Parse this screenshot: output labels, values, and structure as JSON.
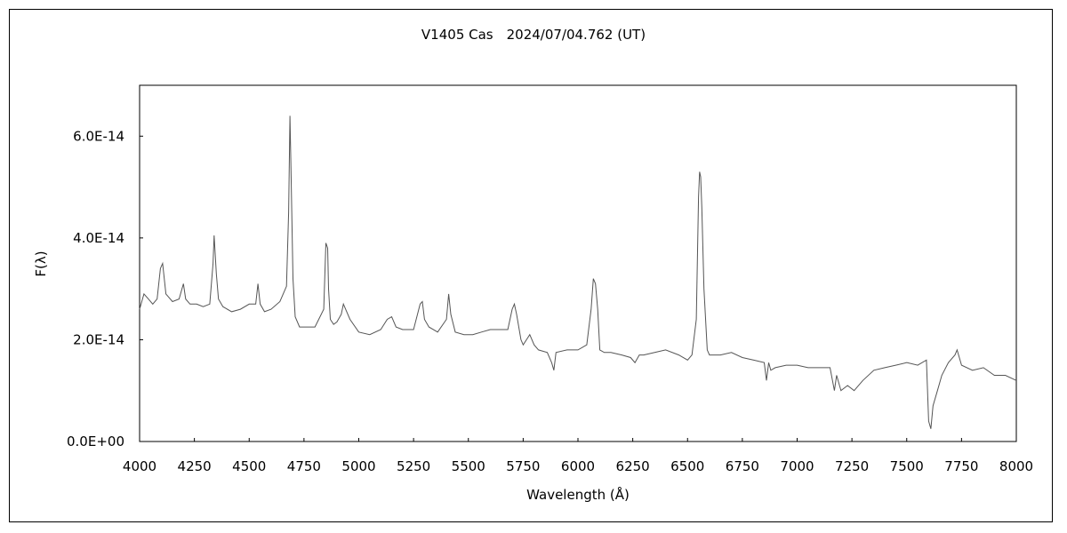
{
  "chart_data": {
    "type": "line",
    "title": "V1405 Cas　2024/07/04.762 (UT)",
    "xlabel": "Wavelength (Å)",
    "ylabel": "F(λ)",
    "xlim": [
      4000,
      8000
    ],
    "ylim": [
      0,
      7e-14
    ],
    "x_ticks": [
      4000,
      4250,
      4500,
      4750,
      5000,
      5250,
      5500,
      5750,
      6000,
      6250,
      6500,
      6750,
      7000,
      7250,
      7500,
      7750,
      8000
    ],
    "x_tick_labels": [
      "4000",
      "4250",
      "4500",
      "4750",
      "5000",
      "5250",
      "5500",
      "5750",
      "6000",
      "6250",
      "6500",
      "6750",
      "7000",
      "7250",
      "7500",
      "7750",
      "8000"
    ],
    "y_ticks": [
      0,
      2e-14,
      4e-14,
      6e-14
    ],
    "y_tick_labels": [
      "0.0E+00",
      "2.0E-14",
      "4.0E-14",
      "6.0E-14"
    ],
    "line_color": "#555555",
    "series": [
      {
        "x": [
          4000,
          4020,
          4040,
          4060,
          4080,
          4095,
          4105,
          4120,
          4150,
          4180,
          4200,
          4210,
          4230,
          4260,
          4290,
          4320,
          4335,
          4340,
          4350,
          4360,
          4380,
          4420,
          4460,
          4500,
          4530,
          4540,
          4550,
          4570,
          4600,
          4640,
          4670,
          4680,
          4686,
          4690,
          4700,
          4710,
          4730,
          4760,
          4800,
          4840,
          4850,
          4858,
          4862,
          4870,
          4885,
          4900,
          4920,
          4930,
          4940,
          4960,
          5000,
          5050,
          5100,
          5130,
          5150,
          5170,
          5200,
          5250,
          5280,
          5290,
          5300,
          5320,
          5360,
          5400,
          5410,
          5420,
          5440,
          5480,
          5520,
          5560,
          5600,
          5640,
          5680,
          5700,
          5710,
          5720,
          5740,
          5750,
          5780,
          5800,
          5820,
          5860,
          5880,
          5890,
          5900,
          5950,
          6000,
          6040,
          6060,
          6070,
          6080,
          6090,
          6100,
          6120,
          6150,
          6200,
          6240,
          6260,
          6280,
          6300,
          6350,
          6400,
          6460,
          6500,
          6520,
          6540,
          6550,
          6555,
          6560,
          6565,
          6575,
          6590,
          6600,
          6650,
          6700,
          6750,
          6800,
          6850,
          6860,
          6870,
          6880,
          6900,
          6950,
          7000,
          7050,
          7100,
          7150,
          7170,
          7180,
          7200,
          7230,
          7260,
          7300,
          7350,
          7400,
          7450,
          7500,
          7550,
          7590,
          7600,
          7610,
          7620,
          7640,
          7660,
          7690,
          7720,
          7730,
          7750,
          7800,
          7850,
          7900,
          7950,
          8000
        ],
        "y": [
          2.6e-14,
          2.9e-14,
          2.8e-14,
          2.7e-14,
          2.8e-14,
          3.4e-14,
          3.5e-14,
          2.9e-14,
          2.75e-14,
          2.8e-14,
          3.1e-14,
          2.8e-14,
          2.7e-14,
          2.7e-14,
          2.65e-14,
          2.7e-14,
          3.5e-14,
          4.05e-14,
          3.3e-14,
          2.8e-14,
          2.65e-14,
          2.55e-14,
          2.6e-14,
          2.7e-14,
          2.7e-14,
          3.1e-14,
          2.7e-14,
          2.55e-14,
          2.6e-14,
          2.75e-14,
          3.05e-14,
          4.5e-14,
          6.4e-14,
          5.5e-14,
          3.2e-14,
          2.45e-14,
          2.25e-14,
          2.25e-14,
          2.25e-14,
          2.6e-14,
          3.9e-14,
          3.8e-14,
          3e-14,
          2.4e-14,
          2.3e-14,
          2.35e-14,
          2.5e-14,
          2.7e-14,
          2.6e-14,
          2.4e-14,
          2.15e-14,
          2.1e-14,
          2.2e-14,
          2.4e-14,
          2.45e-14,
          2.25e-14,
          2.2e-14,
          2.2e-14,
          2.7e-14,
          2.75e-14,
          2.4e-14,
          2.25e-14,
          2.15e-14,
          2.4e-14,
          2.9e-14,
          2.5e-14,
          2.15e-14,
          2.1e-14,
          2.1e-14,
          2.15e-14,
          2.2e-14,
          2.2e-14,
          2.2e-14,
          2.6e-14,
          2.7e-14,
          2.5e-14,
          2e-14,
          1.9e-14,
          2.1e-14,
          1.9e-14,
          1.8e-14,
          1.75e-14,
          1.55e-14,
          1.4e-14,
          1.75e-14,
          1.8e-14,
          1.8e-14,
          1.9e-14,
          2.6e-14,
          3.2e-14,
          3.1e-14,
          2.6e-14,
          1.8e-14,
          1.75e-14,
          1.75e-14,
          1.7e-14,
          1.65e-14,
          1.55e-14,
          1.7e-14,
          1.7e-14,
          1.75e-14,
          1.8e-14,
          1.7e-14,
          1.6e-14,
          1.7e-14,
          2.4e-14,
          4.8e-14,
          5.3e-14,
          5.2e-14,
          4.6e-14,
          3e-14,
          1.8e-14,
          1.7e-14,
          1.7e-14,
          1.75e-14,
          1.65e-14,
          1.6e-14,
          1.55e-14,
          1.2e-14,
          1.55e-14,
          1.4e-14,
          1.45e-14,
          1.5e-14,
          1.5e-14,
          1.45e-14,
          1.45e-14,
          1.45e-14,
          1e-14,
          1.3e-14,
          1e-14,
          1.1e-14,
          1e-14,
          1.2e-14,
          1.4e-14,
          1.45e-14,
          1.5e-14,
          1.55e-14,
          1.5e-14,
          1.6e-14,
          4e-15,
          2.5e-15,
          7e-15,
          1e-14,
          1.3e-14,
          1.55e-14,
          1.7e-14,
          1.8e-14,
          1.5e-14,
          1.4e-14,
          1.45e-14,
          1.3e-14,
          1.3e-14,
          1.2e-14
        ]
      }
    ]
  }
}
